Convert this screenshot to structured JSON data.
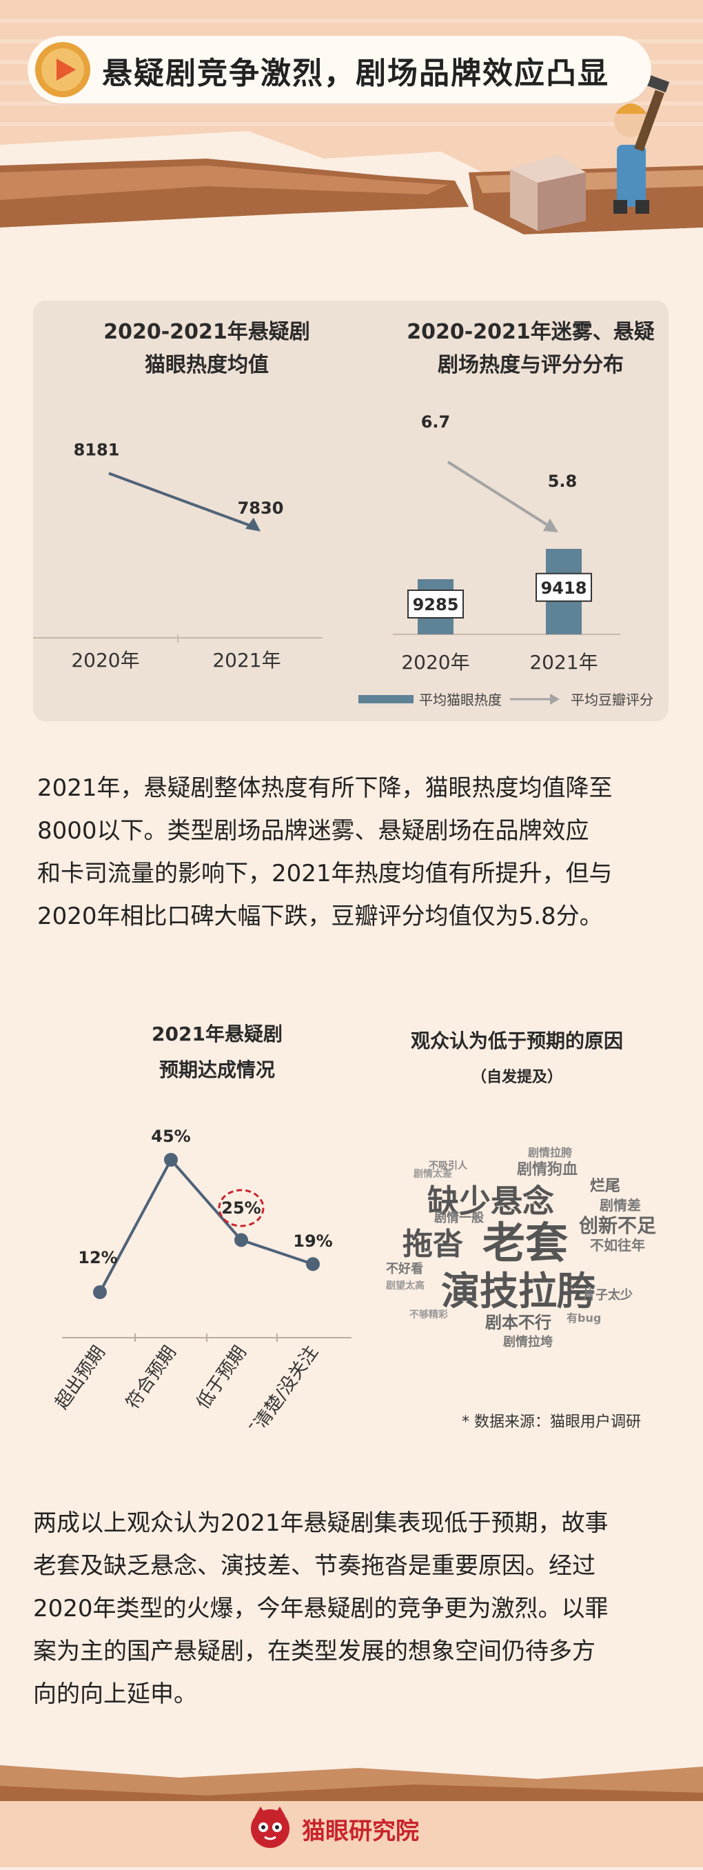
{
  "header": {
    "title": "悬疑剧竞争激烈，剧场品牌效应凸显",
    "icon": "play-icon"
  },
  "colors": {
    "background": "#fbeee3",
    "panel": "#ede0d4",
    "bar": "#5e8296",
    "line": "#4f6378",
    "arrow_gray": "#a3a3a3",
    "highlight": "#c8232c"
  },
  "chart_data": [
    {
      "type": "line",
      "title": "2020-2021年悬疑剧\n猫眼热度均值",
      "categories": [
        "2020年",
        "2021年"
      ],
      "values": [
        8181,
        7830
      ],
      "data_labels": [
        "8181",
        "7830"
      ]
    },
    {
      "type": "bar",
      "title": "2020-2021年迷雾、悬疑\n剧场热度与评分分布",
      "categories": [
        "2020年",
        "2021年"
      ],
      "series": [
        {
          "name": "平均猫眼热度",
          "type": "bar",
          "values": [
            9285,
            9418
          ],
          "labels": [
            "9285",
            "9418"
          ]
        },
        {
          "name": "平均豆瓣评分",
          "type": "line",
          "values": [
            6.7,
            5.8
          ],
          "labels": [
            "6.7",
            "5.8"
          ]
        }
      ],
      "legend": [
        "平均猫眼热度",
        "平均豆瓣评分"
      ],
      "legend_position": "bottom"
    },
    {
      "type": "line",
      "title": "2021年悬疑剧\n预期达成情况",
      "categories": [
        "超出预期",
        "符合预期",
        "低于预期",
        "不清楚/没关注"
      ],
      "values": [
        12,
        45,
        25,
        19
      ],
      "data_labels": [
        "12%",
        "45%",
        "25%",
        "19%"
      ],
      "highlight_index": 2,
      "ylim": [
        0,
        50
      ]
    }
  ],
  "paragraph1": "2021年，悬疑剧整体热度有所下降，猫眼热度均值降至\n8000以下。类型剧场品牌迷雾、悬疑剧场在品牌效应\n和卡司流量的影响下，2021年热度均值有所提升，但与\n2020年相比口碑大幅下跌，豆瓣评分均值仅为5.8分。",
  "wordcloud": {
    "title": "观众认为低于预期的原因",
    "subtitle": "（自发提及）",
    "words": [
      {
        "text": "老套",
        "size": 62
      },
      {
        "text": "演技拉胯",
        "size": 56
      },
      {
        "text": "缺少悬念",
        "size": 46
      },
      {
        "text": "拖沓",
        "size": 44
      },
      {
        "text": "创新不足",
        "size": 28
      },
      {
        "text": "剧情狗血",
        "size": 22
      },
      {
        "text": "剧本不行",
        "size": 24
      },
      {
        "text": "剧情差",
        "size": 20
      },
      {
        "text": "不如往年",
        "size": 20
      },
      {
        "text": "片子太少",
        "size": 18
      },
      {
        "text": "烂尾",
        "size": 22
      },
      {
        "text": "剧情一般",
        "size": 18
      },
      {
        "text": "剧情拉垮",
        "size": 18
      },
      {
        "text": "不好看",
        "size": 18
      },
      {
        "text": "剧情拉胯",
        "size": 16
      },
      {
        "text": "有bug",
        "size": 16
      },
      {
        "text": "不吸引人",
        "size": 14
      },
      {
        "text": "剧情太差",
        "size": 14
      },
      {
        "text": "不够精彩",
        "size": 14
      },
      {
        "text": "剧望太高",
        "size": 14
      }
    ]
  },
  "source_note": "* 数据来源：猫眼用户调研",
  "paragraph2": "两成以上观众认为2021年悬疑剧集表现低于预期，故事\n老套及缺乏悬念、演技差、节奏拖沓是重要原因。经过\n2020年类型的火爆，今年悬疑剧的竞争更为激烈。以罪\n案为主的国产悬疑剧，在类型发展的想象空间仍待多方\n向的向上延申。",
  "footer": {
    "brand": "猫眼研究院",
    "logo": "cat-logo-icon"
  }
}
